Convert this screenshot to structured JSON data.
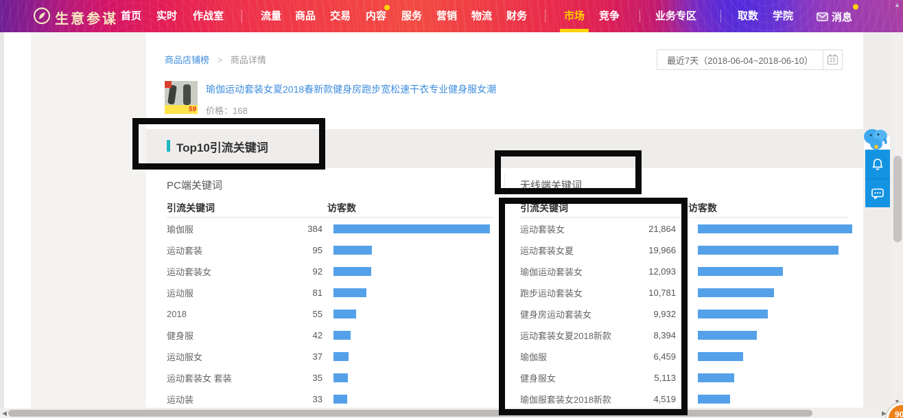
{
  "nav": {
    "brand": "生意参谋",
    "items": [
      "首页",
      "实时",
      "作战室",
      "流量",
      "商品",
      "交易",
      "内容",
      "服务",
      "营销",
      "物流",
      "财务",
      "市场",
      "竞争",
      "业务专区",
      "取数",
      "学院"
    ],
    "active_item": "市场",
    "dot_item": "内容",
    "message_label": "消息",
    "accent_yellow": "#ffd200"
  },
  "breadcrumb": {
    "link": "商品店铺榜",
    "separator": ">",
    "current": "商品详情"
  },
  "date_picker": {
    "label": "最近7天（2018-06-04~2018-06-10）",
    "calendar_day": "15"
  },
  "product": {
    "title": "瑜伽运动套装女夏2018春新款健身房跑步宽松速干衣专业健身服女潮",
    "price": "价格：168",
    "thumb_price_badge": "59"
  },
  "section": {
    "title": "Top10引流关键词",
    "marker_color": "#1cb5c2"
  },
  "panels": {
    "bar_color": "#55a1e9",
    "pc": {
      "title": "PC端关键词",
      "col_keyword": "引流关键词",
      "col_visitors": "访客数",
      "max": 384,
      "rows": [
        {
          "kw": "瑜伽服",
          "val": "384",
          "n": 384
        },
        {
          "kw": "运动套装",
          "val": "95",
          "n": 95
        },
        {
          "kw": "运动套装女",
          "val": "92",
          "n": 92
        },
        {
          "kw": "运动服",
          "val": "81",
          "n": 81
        },
        {
          "kw": "2018",
          "val": "55",
          "n": 55
        },
        {
          "kw": "健身服",
          "val": "42",
          "n": 42
        },
        {
          "kw": "运动服女",
          "val": "37",
          "n": 37
        },
        {
          "kw": "运动套装女 套装",
          "val": "35",
          "n": 35
        },
        {
          "kw": "运动装",
          "val": "33",
          "n": 33
        }
      ]
    },
    "wireless": {
      "title": "无线端关键词",
      "col_keyword": "引流关键词",
      "col_visitors": "访客数",
      "max": 21864,
      "rows": [
        {
          "kw": "运动套装女",
          "val": "21,864",
          "n": 21864
        },
        {
          "kw": "运动套装女夏",
          "val": "19,966",
          "n": 19966
        },
        {
          "kw": "瑜伽运动套装女",
          "val": "12,093",
          "n": 12093
        },
        {
          "kw": "跑步运动套装女",
          "val": "10,781",
          "n": 10781
        },
        {
          "kw": "健身房运动套装女",
          "val": "9,932",
          "n": 9932
        },
        {
          "kw": "运动套装女夏2018新款",
          "val": "8,394",
          "n": 8394
        },
        {
          "kw": "瑜伽服",
          "val": "6,459",
          "n": 6459
        },
        {
          "kw": "健身服女",
          "val": "5,113",
          "n": 5113
        },
        {
          "kw": "瑜伽服套装女2018新款",
          "val": "4,519",
          "n": 4519
        }
      ]
    }
  },
  "chart_data": [
    {
      "type": "bar",
      "title": "PC端关键词 Top10引流关键词",
      "categories": [
        "瑜伽服",
        "运动套装",
        "运动套装女",
        "运动服",
        "2018",
        "健身服",
        "运动服女",
        "运动套装女 套装",
        "运动装"
      ],
      "values": [
        384,
        95,
        92,
        81,
        55,
        42,
        37,
        35,
        33
      ],
      "xlabel": "访客数",
      "ylabel": "引流关键词",
      "xlim": [
        0,
        384
      ],
      "orientation": "horizontal",
      "grid": false
    },
    {
      "type": "bar",
      "title": "无线端关键词 Top10引流关键词",
      "categories": [
        "运动套装女",
        "运动套装女夏",
        "瑜伽运动套装女",
        "跑步运动套装女",
        "健身房运动套装女",
        "运动套装女夏2018新款",
        "瑜伽服",
        "健身服女",
        "瑜伽服套装女2018新款"
      ],
      "values": [
        21864,
        19966,
        12093,
        10781,
        9932,
        8394,
        6459,
        5113,
        4519
      ],
      "xlabel": "访客数",
      "ylabel": "引流关键词",
      "xlim": [
        0,
        21864
      ],
      "orientation": "horizontal",
      "grid": false
    }
  ],
  "corner_badge": {
    "text": "90"
  }
}
